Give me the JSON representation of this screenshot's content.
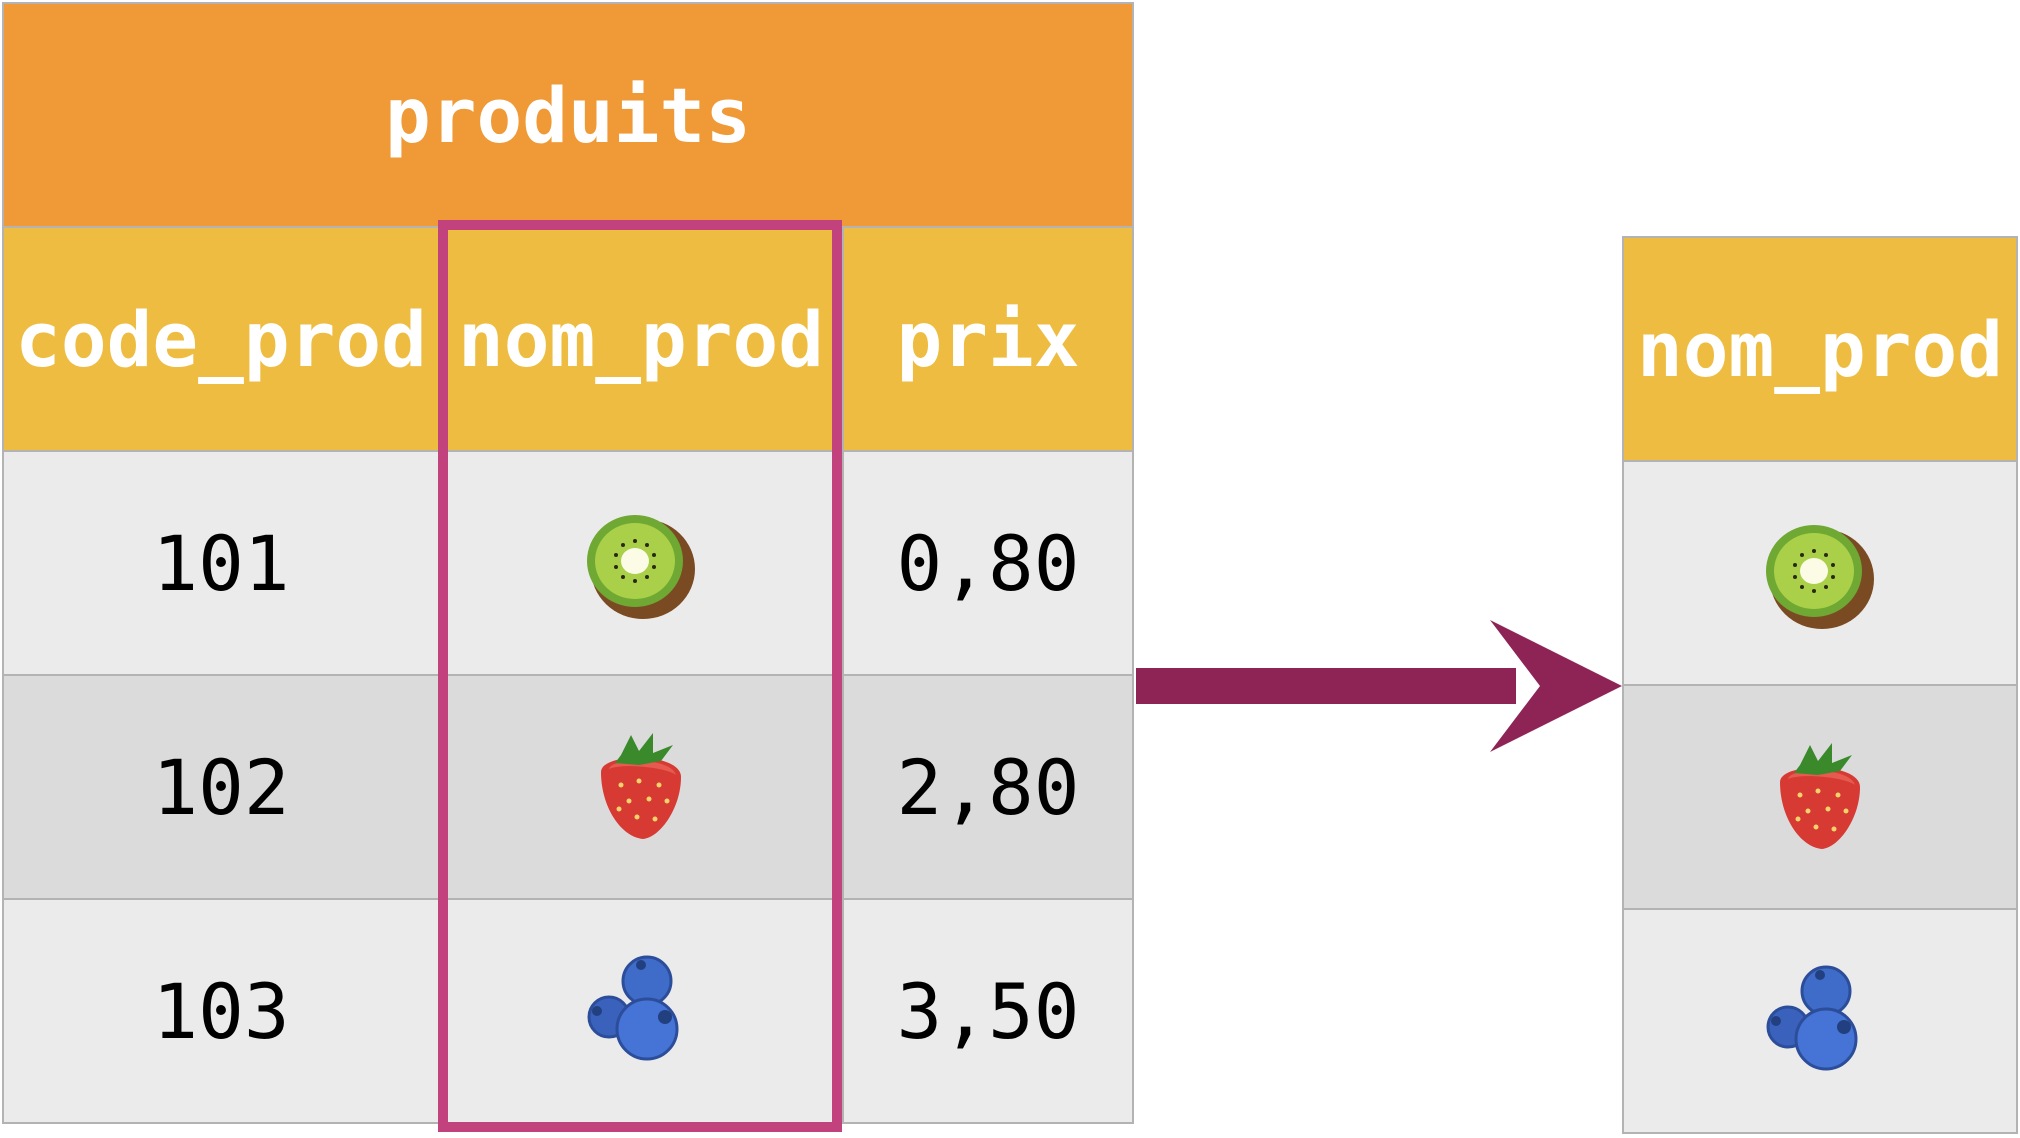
{
  "source_table": {
    "title": "produits",
    "columns": [
      "code_prod",
      "nom_prod",
      "prix"
    ],
    "rows": [
      {
        "code_prod": "101",
        "nom_prod_icon": "kiwi-icon",
        "prix": "0,80"
      },
      {
        "code_prod": "102",
        "nom_prod_icon": "strawberry-icon",
        "prix": "2,80"
      },
      {
        "code_prod": "103",
        "nom_prod_icon": "blueberries-icon",
        "prix": "3,50"
      }
    ]
  },
  "result_table": {
    "column": "nom_prod",
    "rows": [
      {
        "nom_prod_icon": "kiwi-icon"
      },
      {
        "nom_prod_icon": "strawberry-icon"
      },
      {
        "nom_prod_icon": "blueberries-icon"
      }
    ]
  },
  "colors": {
    "title_bg": "#ef9a36",
    "header_bg": "#eebc41",
    "row_light": "#ebebeb",
    "row_dark": "#dbdbdb",
    "highlight": "#c2427d",
    "arrow": "#8e2456"
  }
}
